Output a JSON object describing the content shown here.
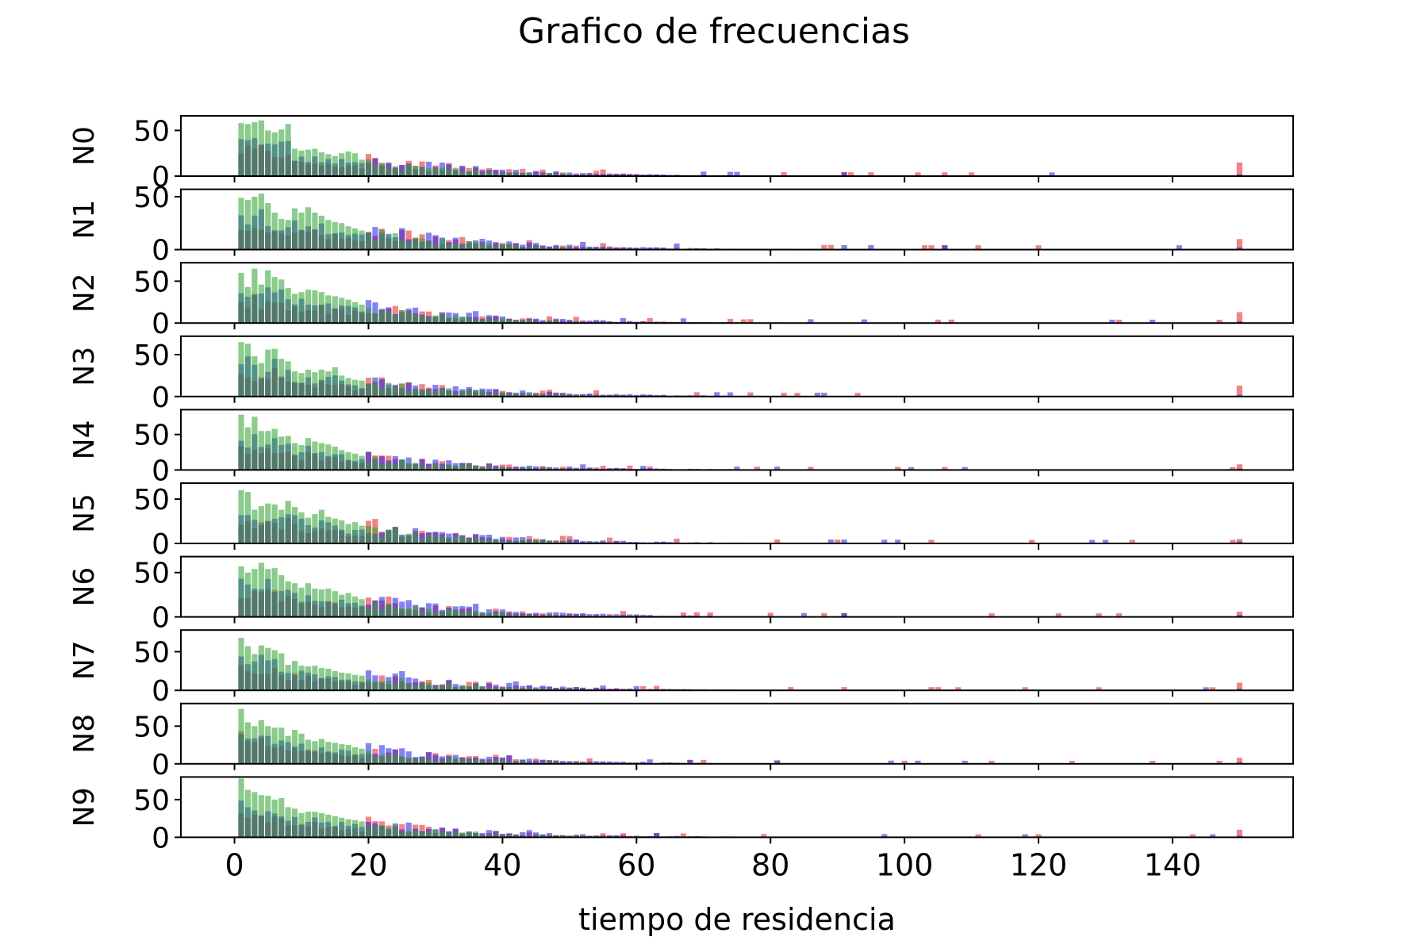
{
  "chart_data": {
    "type": "bar",
    "title": "Grafico de frecuencias",
    "xlabel": "tiempo de residencia",
    "xlim": [
      -8,
      158
    ],
    "x_ticks": [
      "0",
      "20",
      "40",
      "60",
      "80",
      "100",
      "120",
      "140"
    ],
    "y_tick_labels": [
      "0",
      "50"
    ],
    "grid": false,
    "legend": "none",
    "series_colors": {
      "green": "#2ca02c",
      "blue": "#1f1fe6",
      "red": "#e61f1f"
    },
    "bar_alpha": 0.55,
    "panels": [
      {
        "name": "N0",
        "ylim": [
          0,
          66
        ]
      },
      {
        "name": "N1",
        "ylim": [
          0,
          57
        ]
      },
      {
        "name": "N2",
        "ylim": [
          0,
          72
        ]
      },
      {
        "name": "N3",
        "ylim": [
          0,
          72
        ]
      },
      {
        "name": "N4",
        "ylim": [
          0,
          85
        ]
      },
      {
        "name": "N5",
        "ylim": [
          0,
          68
        ]
      },
      {
        "name": "N6",
        "ylim": [
          0,
          68
        ]
      },
      {
        "name": "N7",
        "ylim": [
          0,
          78
        ]
      },
      {
        "name": "N8",
        "ylim": [
          0,
          80
        ]
      },
      {
        "name": "N9",
        "ylim": [
          0,
          80
        ]
      }
    ],
    "green_head": [
      [
        58,
        57,
        59,
        61,
        50,
        48,
        51,
        57,
        30,
        28,
        29,
        30,
        26,
        24,
        22,
        25,
        27,
        25,
        18
      ],
      [
        49,
        47,
        50,
        53,
        44,
        35,
        29,
        28,
        39,
        35,
        40,
        35,
        32,
        28,
        26,
        25,
        22,
        20,
        18
      ],
      [
        60,
        43,
        65,
        46,
        63,
        55,
        52,
        42,
        35,
        37,
        40,
        39,
        37,
        33,
        32,
        30,
        28,
        25,
        22
      ],
      [
        65,
        63,
        48,
        40,
        56,
        57,
        45,
        42,
        30,
        28,
        32,
        29,
        32,
        30,
        35,
        25,
        22,
        20,
        19
      ],
      [
        78,
        60,
        75,
        55,
        55,
        58,
        47,
        48,
        38,
        35,
        45,
        40,
        38,
        36,
        33,
        28,
        25,
        23,
        20
      ],
      [
        60,
        58,
        38,
        42,
        45,
        44,
        38,
        48,
        41,
        35,
        29,
        33,
        38,
        30,
        28,
        26,
        22,
        24,
        20
      ],
      [
        57,
        50,
        54,
        61,
        54,
        55,
        47,
        40,
        38,
        33,
        38,
        32,
        31,
        32,
        29,
        25,
        27,
        23,
        20
      ],
      [
        68,
        57,
        47,
        58,
        55,
        52,
        48,
        33,
        38,
        32,
        31,
        32,
        29,
        28,
        25,
        23,
        22,
        20,
        19
      ],
      [
        73,
        55,
        50,
        58,
        50,
        48,
        48,
        37,
        45,
        40,
        32,
        30,
        33,
        29,
        28,
        26,
        25,
        22,
        20
      ],
      [
        78,
        63,
        60,
        56,
        55,
        50,
        52,
        40,
        38,
        32,
        34,
        34,
        32,
        30,
        28,
        26,
        24,
        23,
        21
      ]
    ],
    "red_tail_value": [
      15,
      10,
      13,
      13,
      8,
      5,
      6,
      10,
      8,
      10
    ]
  }
}
